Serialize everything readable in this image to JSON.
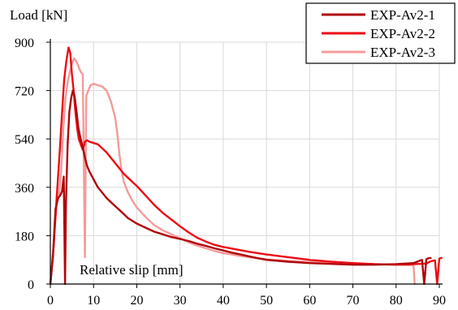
{
  "chart_data": {
    "type": "line",
    "title": "",
    "ylabel": "Load [kN]",
    "xlabel": "Relative slip [mm]",
    "xlim": [
      0,
      90
    ],
    "ylim": [
      0,
      900
    ],
    "x_ticks": [
      0,
      10,
      20,
      30,
      40,
      50,
      60,
      70,
      80,
      90
    ],
    "y_ticks": [
      0,
      180,
      360,
      540,
      720,
      900
    ],
    "grid": true,
    "legend_position": "top-right",
    "series": [
      {
        "name": "EXP-Av2-1",
        "color": "#b0060b",
        "points": [
          [
            0,
            0
          ],
          [
            0.6,
            100
          ],
          [
            1.2,
            280
          ],
          [
            1.8,
            320
          ],
          [
            2.3,
            330
          ],
          [
            2.7,
            345
          ],
          [
            3.1,
            400
          ],
          [
            3.4,
            0
          ],
          [
            3.6,
            300
          ],
          [
            4.0,
            520
          ],
          [
            4.4,
            640
          ],
          [
            4.8,
            690
          ],
          [
            5.2,
            720
          ],
          [
            5.6,
            700
          ],
          [
            6.0,
            650
          ],
          [
            6.5,
            580
          ],
          [
            7.0,
            540
          ],
          [
            7.5,
            510
          ],
          [
            8.0,
            470
          ],
          [
            8.5,
            440
          ],
          [
            9.0,
            420
          ],
          [
            10,
            390
          ],
          [
            11,
            360
          ],
          [
            12,
            340
          ],
          [
            13,
            320
          ],
          [
            14,
            305
          ],
          [
            15,
            290
          ],
          [
            16,
            275
          ],
          [
            17,
            260
          ],
          [
            18,
            245
          ],
          [
            20,
            225
          ],
          [
            22,
            210
          ],
          [
            24,
            195
          ],
          [
            26,
            185
          ],
          [
            28,
            175
          ],
          [
            30,
            168
          ],
          [
            32,
            160
          ],
          [
            34,
            150
          ],
          [
            36,
            142
          ],
          [
            38,
            133
          ],
          [
            40,
            125
          ],
          [
            42,
            117
          ],
          [
            44,
            110
          ],
          [
            46,
            103
          ],
          [
            48,
            96
          ],
          [
            50,
            90
          ],
          [
            55,
            83
          ],
          [
            60,
            78
          ],
          [
            65,
            75
          ],
          [
            70,
            72
          ],
          [
            75,
            72
          ],
          [
            80,
            74
          ],
          [
            84,
            78
          ],
          [
            86,
            90
          ],
          [
            86.5,
            0
          ],
          [
            87,
            92
          ],
          [
            87.5,
            96
          ],
          [
            88,
            97
          ]
        ]
      },
      {
        "name": "EXP-Av2-2",
        "color": "#ec0c14",
        "points": [
          [
            0,
            0
          ],
          [
            0.8,
            150
          ],
          [
            1.5,
            330
          ],
          [
            2.2,
            500
          ],
          [
            2.8,
            660
          ],
          [
            3.2,
            760
          ],
          [
            3.7,
            830
          ],
          [
            4.2,
            880
          ],
          [
            4.6,
            860
          ],
          [
            5.0,
            780
          ],
          [
            5.4,
            720
          ],
          [
            5.8,
            640
          ],
          [
            6.2,
            580
          ],
          [
            6.6,
            540
          ],
          [
            7.0,
            520
          ],
          [
            7.5,
            500
          ],
          [
            8.0,
            530
          ],
          [
            8.5,
            535
          ],
          [
            9,
            530
          ],
          [
            10,
            525
          ],
          [
            11,
            520
          ],
          [
            12,
            505
          ],
          [
            13,
            490
          ],
          [
            14,
            470
          ],
          [
            15,
            450
          ],
          [
            16,
            430
          ],
          [
            17,
            410
          ],
          [
            18,
            395
          ],
          [
            19,
            380
          ],
          [
            20,
            365
          ],
          [
            22,
            330
          ],
          [
            24,
            295
          ],
          [
            26,
            265
          ],
          [
            28,
            240
          ],
          [
            30,
            215
          ],
          [
            32,
            192
          ],
          [
            34,
            172
          ],
          [
            36,
            158
          ],
          [
            38,
            146
          ],
          [
            40,
            138
          ],
          [
            42,
            132
          ],
          [
            44,
            126
          ],
          [
            46,
            120
          ],
          [
            48,
            115
          ],
          [
            50,
            110
          ],
          [
            55,
            100
          ],
          [
            60,
            90
          ],
          [
            65,
            83
          ],
          [
            70,
            78
          ],
          [
            75,
            74
          ],
          [
            80,
            72
          ],
          [
            84,
            74
          ],
          [
            87,
            76
          ],
          [
            88,
            85
          ],
          [
            89,
            88
          ],
          [
            89.5,
            0
          ],
          [
            90,
            95
          ],
          [
            90.5,
            97
          ]
        ]
      },
      {
        "name": "EXP-Av2-3",
        "color": "#f59a9a",
        "points": [
          [
            0,
            0
          ],
          [
            0.5,
            90
          ],
          [
            1.0,
            220
          ],
          [
            1.5,
            300
          ],
          [
            2.0,
            330
          ],
          [
            2.5,
            420
          ],
          [
            3.0,
            580
          ],
          [
            3.5,
            690
          ],
          [
            4.0,
            750
          ],
          [
            4.5,
            790
          ],
          [
            5.0,
            820
          ],
          [
            5.5,
            840
          ],
          [
            6.0,
            830
          ],
          [
            6.5,
            810
          ],
          [
            7.0,
            790
          ],
          [
            7.5,
            780
          ],
          [
            8.0,
            100
          ],
          [
            8.3,
            700
          ],
          [
            8.8,
            720
          ],
          [
            9.3,
            740
          ],
          [
            10,
            745
          ],
          [
            11,
            740
          ],
          [
            12,
            735
          ],
          [
            13,
            720
          ],
          [
            14,
            680
          ],
          [
            15,
            620
          ],
          [
            15.5,
            560
          ],
          [
            16,
            480
          ],
          [
            16.5,
            420
          ],
          [
            17,
            380
          ],
          [
            18,
            340
          ],
          [
            19,
            310
          ],
          [
            20,
            285
          ],
          [
            22,
            250
          ],
          [
            24,
            220
          ],
          [
            26,
            200
          ],
          [
            28,
            185
          ],
          [
            30,
            170
          ],
          [
            32,
            155
          ],
          [
            34,
            143
          ],
          [
            36,
            133
          ],
          [
            38,
            123
          ],
          [
            40,
            115
          ],
          [
            42,
            110
          ],
          [
            44,
            104
          ],
          [
            46,
            100
          ],
          [
            48,
            96
          ],
          [
            50,
            92
          ],
          [
            55,
            86
          ],
          [
            60,
            82
          ],
          [
            65,
            79
          ],
          [
            70,
            76
          ],
          [
            75,
            74
          ],
          [
            80,
            72
          ],
          [
            83,
            70
          ],
          [
            84,
            71
          ],
          [
            84.3,
            0
          ]
        ]
      }
    ]
  }
}
